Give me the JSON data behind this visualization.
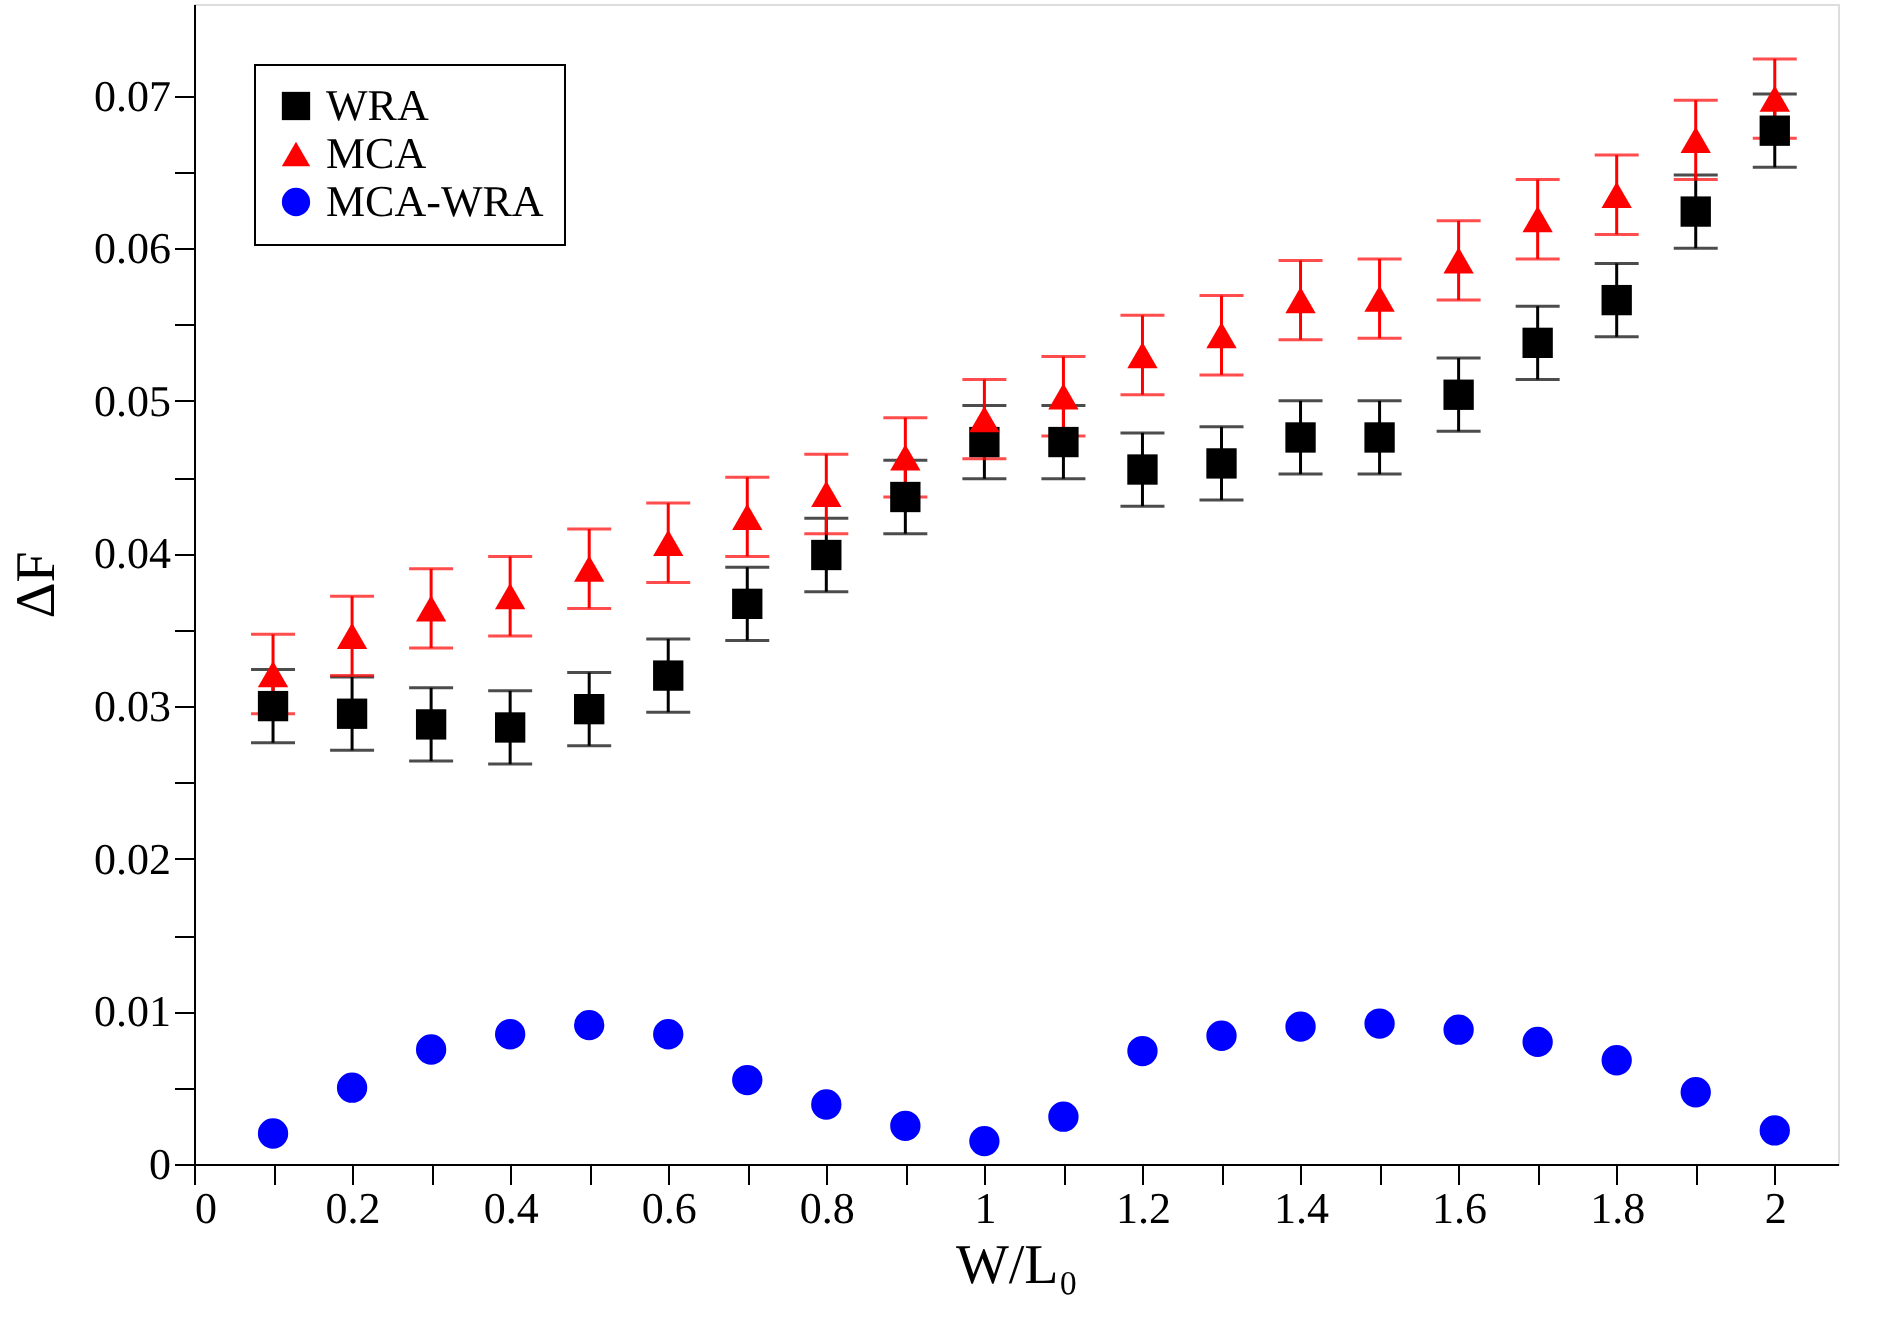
{
  "chart_data": {
    "type": "scatter",
    "xlabel": "W/L₀",
    "ylabel": "ΔF",
    "x": [
      0.1,
      0.2,
      0.3,
      0.4,
      0.5,
      0.6,
      0.7,
      0.8,
      0.9,
      1.0,
      1.1,
      1.2,
      1.3,
      1.4,
      1.5,
      1.6,
      1.7,
      1.8,
      1.9,
      2.0
    ],
    "series": [
      {
        "name": "WRA",
        "color": "#000000",
        "marker": "square",
        "values": [
          0.03,
          0.0295,
          0.0288,
          0.0286,
          0.0298,
          0.032,
          0.0367,
          0.0399,
          0.0437,
          0.0473,
          0.0473,
          0.0455,
          0.0459,
          0.0476,
          0.0476,
          0.0504,
          0.0538,
          0.0566,
          0.0624,
          0.0677
        ],
        "errors": [
          0.0024,
          0.0024,
          0.0024,
          0.0024,
          0.0024,
          0.0024,
          0.0024,
          0.0024,
          0.0024,
          0.0024,
          0.0024,
          0.0024,
          0.0024,
          0.0024,
          0.0024,
          0.0024,
          0.0024,
          0.0024,
          0.0024,
          0.0024
        ]
      },
      {
        "name": "MCA",
        "color": "#ff0000",
        "marker": "triangle",
        "values": [
          0.0321,
          0.0346,
          0.0364,
          0.0372,
          0.039,
          0.0407,
          0.0424,
          0.0439,
          0.0463,
          0.0488,
          0.0503,
          0.053,
          0.0543,
          0.0566,
          0.0567,
          0.0592,
          0.0619,
          0.0635,
          0.0671,
          0.0698
        ],
        "errors": [
          0.0026,
          0.0026,
          0.0026,
          0.0026,
          0.0026,
          0.0026,
          0.0026,
          0.0026,
          0.0026,
          0.0026,
          0.0026,
          0.0026,
          0.0026,
          0.0026,
          0.0026,
          0.0026,
          0.0026,
          0.0026,
          0.0026,
          0.0026
        ]
      },
      {
        "name": "MCA-WRA",
        "color": "#0000ff",
        "marker": "circle",
        "values": [
          0.002,
          0.005,
          0.0075,
          0.0085,
          0.0091,
          0.0085,
          0.0055,
          0.0039,
          0.0025,
          0.0015,
          0.0031,
          0.0074,
          0.0084,
          0.009,
          0.0092,
          0.0088,
          0.008,
          0.0068,
          0.0047,
          0.0022
        ]
      }
    ],
    "xlim": [
      0,
      2.08
    ],
    "xticks": [
      0,
      {
        "value": 0.1,
        "label": null
      },
      0.2,
      {
        "value": 0.3,
        "label": null
      },
      0.4,
      {
        "value": 0.5,
        "label": null
      },
      0.6,
      {
        "value": 0.7,
        "label": null
      },
      0.8,
      {
        "value": 0.9,
        "label": null
      },
      1,
      {
        "value": 1.1,
        "label": null
      },
      1.2,
      {
        "value": 1.3,
        "label": null
      },
      1.4,
      {
        "value": 1.5,
        "label": null
      },
      1.6,
      {
        "value": 1.7,
        "label": null
      },
      1.8,
      {
        "value": 1.9,
        "label": null
      },
      2
    ],
    "ylim": [
      0,
      0.076
    ],
    "yticks": [
      0,
      {
        "value": 0.005,
        "label": null
      },
      0.01,
      {
        "value": 0.015,
        "label": null
      },
      0.02,
      {
        "value": 0.025,
        "label": null
      },
      0.03,
      {
        "value": 0.035,
        "label": null
      },
      0.04,
      {
        "value": 0.045,
        "label": null
      },
      0.05,
      {
        "value": 0.055,
        "label": null
      },
      0.06,
      {
        "value": 0.065,
        "label": null
      },
      0.07
    ],
    "legend": "top left",
    "grid": false
  }
}
